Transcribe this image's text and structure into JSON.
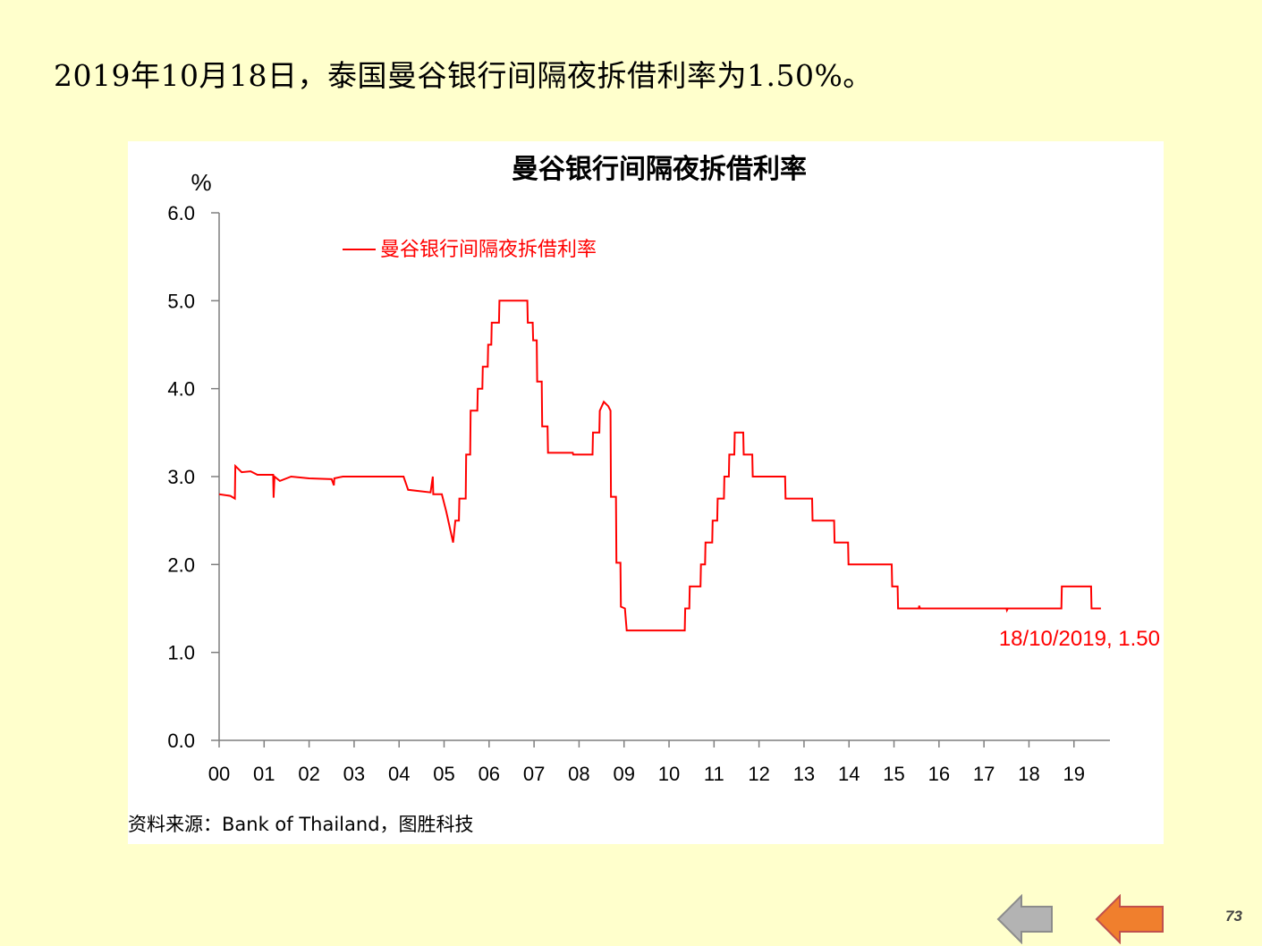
{
  "headline": "2019年10月18日，泰国曼谷银行间隔夜拆借利率为1.50%。",
  "source": "资料来源：Bank of Thailand，图胜科技",
  "page_number": "73",
  "nav": {
    "back_icon": "left-arrow-gray",
    "next_icon": "left-arrow-orange"
  },
  "colors": {
    "background": "#ffffcc",
    "series": "#ff0000",
    "back_arrow": "#b3b3b3",
    "next_arrow": "#f07f2d"
  },
  "chart_data": {
    "type": "line",
    "title": "曼谷银行间隔夜拆借利率",
    "ylabel": "%",
    "xlabel": "",
    "ylim": [
      0,
      6
    ],
    "xlim": [
      2000,
      2019.8
    ],
    "yticks": [
      "0.0",
      "1.0",
      "2.0",
      "3.0",
      "4.0",
      "5.0",
      "6.0"
    ],
    "xticks": [
      "00",
      "01",
      "02",
      "03",
      "04",
      "05",
      "06",
      "07",
      "08",
      "09",
      "10",
      "11",
      "12",
      "13",
      "14",
      "15",
      "16",
      "17",
      "18",
      "19"
    ],
    "legend_position": "top-left",
    "grid": false,
    "annotation": "18/10/2019, 1.50",
    "series": [
      {
        "name": "曼谷银行间隔夜拆借利率",
        "points": [
          [
            2000.0,
            2.8
          ],
          [
            2000.25,
            2.78
          ],
          [
            2000.35,
            2.75
          ],
          [
            2000.36,
            3.12
          ],
          [
            2000.5,
            3.05
          ],
          [
            2000.7,
            3.06
          ],
          [
            2000.85,
            3.02
          ],
          [
            2001.2,
            3.02
          ],
          [
            2001.21,
            2.76
          ],
          [
            2001.23,
            3.0
          ],
          [
            2001.35,
            2.95
          ],
          [
            2001.6,
            3.0
          ],
          [
            2002.0,
            2.98
          ],
          [
            2002.5,
            2.97
          ],
          [
            2002.55,
            2.9
          ],
          [
            2002.56,
            2.98
          ],
          [
            2002.75,
            3.0
          ],
          [
            2004.1,
            3.0
          ],
          [
            2004.2,
            2.85
          ],
          [
            2004.7,
            2.82
          ],
          [
            2004.75,
            3.0
          ],
          [
            2004.76,
            2.8
          ],
          [
            2004.95,
            2.8
          ],
          [
            2005.05,
            2.6
          ],
          [
            2005.2,
            2.25
          ],
          [
            2005.25,
            2.5
          ],
          [
            2005.33,
            2.5
          ],
          [
            2005.34,
            2.75
          ],
          [
            2005.48,
            2.75
          ],
          [
            2005.49,
            3.25
          ],
          [
            2005.58,
            3.25
          ],
          [
            2005.59,
            3.75
          ],
          [
            2005.74,
            3.75
          ],
          [
            2005.75,
            4.0
          ],
          [
            2005.85,
            4.0
          ],
          [
            2005.86,
            4.25
          ],
          [
            2005.97,
            4.25
          ],
          [
            2005.98,
            4.5
          ],
          [
            2006.05,
            4.5
          ],
          [
            2006.06,
            4.75
          ],
          [
            2006.22,
            4.75
          ],
          [
            2006.23,
            5.0
          ],
          [
            2006.85,
            5.0
          ],
          [
            2006.86,
            4.75
          ],
          [
            2006.97,
            4.75
          ],
          [
            2006.98,
            4.55
          ],
          [
            2007.06,
            4.55
          ],
          [
            2007.07,
            4.08
          ],
          [
            2007.17,
            4.08
          ],
          [
            2007.18,
            3.57
          ],
          [
            2007.3,
            3.57
          ],
          [
            2007.31,
            3.27
          ],
          [
            2007.86,
            3.27
          ],
          [
            2007.87,
            3.25
          ],
          [
            2008.3,
            3.25
          ],
          [
            2008.31,
            3.5
          ],
          [
            2008.45,
            3.5
          ],
          [
            2008.46,
            3.75
          ],
          [
            2008.55,
            3.85
          ],
          [
            2008.65,
            3.8
          ],
          [
            2008.7,
            3.75
          ],
          [
            2008.71,
            2.77
          ],
          [
            2008.82,
            2.77
          ],
          [
            2008.83,
            2.02
          ],
          [
            2008.92,
            2.02
          ],
          [
            2008.93,
            1.52
          ],
          [
            2009.02,
            1.5
          ],
          [
            2009.06,
            1.25
          ],
          [
            2010.35,
            1.25
          ],
          [
            2010.36,
            1.5
          ],
          [
            2010.45,
            1.5
          ],
          [
            2010.46,
            1.75
          ],
          [
            2010.7,
            1.75
          ],
          [
            2010.71,
            2.0
          ],
          [
            2010.8,
            2.0
          ],
          [
            2010.81,
            2.25
          ],
          [
            2010.96,
            2.25
          ],
          [
            2010.97,
            2.5
          ],
          [
            2011.07,
            2.5
          ],
          [
            2011.08,
            2.75
          ],
          [
            2011.22,
            2.75
          ],
          [
            2011.23,
            3.0
          ],
          [
            2011.33,
            3.0
          ],
          [
            2011.34,
            3.25
          ],
          [
            2011.45,
            3.25
          ],
          [
            2011.46,
            3.5
          ],
          [
            2011.65,
            3.5
          ],
          [
            2011.66,
            3.25
          ],
          [
            2011.85,
            3.25
          ],
          [
            2011.86,
            3.0
          ],
          [
            2012.58,
            3.0
          ],
          [
            2012.59,
            2.75
          ],
          [
            2013.18,
            2.75
          ],
          [
            2013.19,
            2.5
          ],
          [
            2013.67,
            2.5
          ],
          [
            2013.68,
            2.25
          ],
          [
            2013.98,
            2.25
          ],
          [
            2013.99,
            2.0
          ],
          [
            2014.95,
            2.0
          ],
          [
            2014.96,
            1.75
          ],
          [
            2015.08,
            1.75
          ],
          [
            2015.09,
            1.5
          ],
          [
            2015.55,
            1.5
          ],
          [
            2015.56,
            1.53
          ],
          [
            2015.58,
            1.5
          ],
          [
            2017.5,
            1.5
          ],
          [
            2017.51,
            1.48
          ],
          [
            2017.53,
            1.5
          ],
          [
            2018.72,
            1.5
          ],
          [
            2018.73,
            1.75
          ],
          [
            2019.38,
            1.75
          ],
          [
            2019.39,
            1.5
          ],
          [
            2019.6,
            1.5
          ]
        ]
      }
    ]
  }
}
